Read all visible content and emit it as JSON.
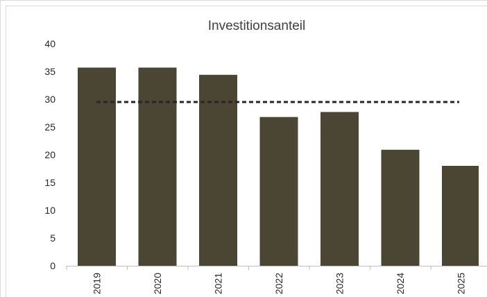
{
  "chart_data": {
    "type": "bar",
    "title": "Investitionsanteil",
    "xlabel": "",
    "ylabel": "",
    "categories": [
      "2019",
      "2020",
      "2021",
      "2022",
      "2023",
      "2024",
      "2025"
    ],
    "series": [
      {
        "values": [
          35.7,
          35.7,
          34.4,
          26.8,
          27.7,
          20.9,
          18.0
        ]
      }
    ],
    "reference_line": {
      "value": 29.5,
      "style": "dashed"
    },
    "ylim": [
      0,
      40
    ],
    "yticks": [
      "0",
      "5",
      "10",
      "15",
      "20",
      "25",
      "30",
      "35",
      "40"
    ],
    "grid": false,
    "legend": "none",
    "colors": {
      "bar": "#4a4633",
      "reference_line": "#262626"
    }
  }
}
